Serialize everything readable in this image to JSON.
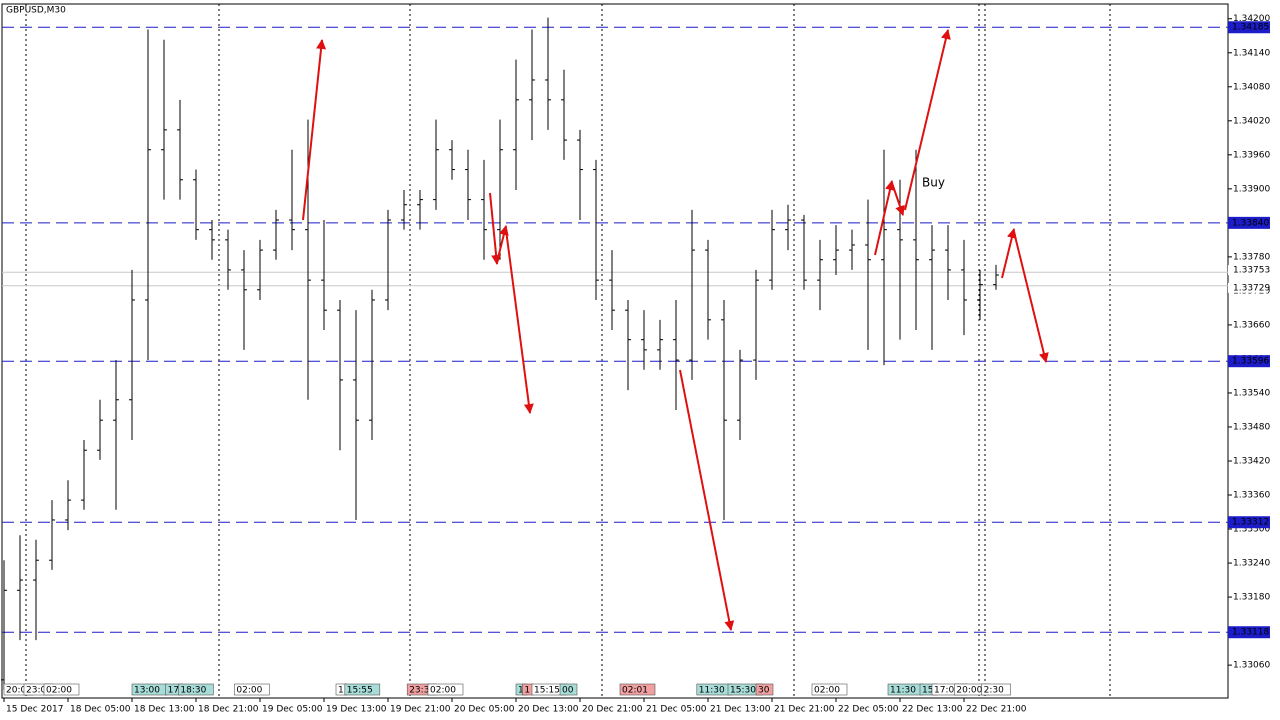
{
  "chart_data": {
    "type": "ohlc",
    "title": "GBPUSD,M30",
    "annotation": "Buy",
    "annotation_color": "#e02020",
    "xlim": [
      -0.125,
      76.5
    ],
    "ylim": [
      1.33002,
      1.34226
    ],
    "xticks": [
      {
        "value": 0,
        "label": "15 Dec 2017"
      },
      {
        "value": 4,
        "label": "18 Dec 05:00"
      },
      {
        "value": 8,
        "label": "18 Dec 13:00"
      },
      {
        "value": 12,
        "label": "18 Dec 21:00"
      },
      {
        "value": 16,
        "label": "19 Dec 05:00"
      },
      {
        "value": 20,
        "label": "19 Dec 13:00"
      },
      {
        "value": 24,
        "label": "19 Dec 21:00"
      },
      {
        "value": 28,
        "label": "20 Dec 05:00"
      },
      {
        "value": 32,
        "label": "20 Dec 13:00"
      },
      {
        "value": 36,
        "label": "20 Dec 21:00"
      },
      {
        "value": 40,
        "label": "21 Dec 05:00"
      },
      {
        "value": 44,
        "label": "21 Dec 13:00"
      },
      {
        "value": 48,
        "label": "21 Dec 21:00"
      },
      {
        "value": 52,
        "label": "22 Dec 05:00"
      },
      {
        "value": 56,
        "label": "22 Dec 13:00"
      },
      {
        "value": 60,
        "label": "22 Dec 21:00"
      }
    ],
    "yticks": [
      {
        "value": 1.3306,
        "label": "1.33060"
      },
      {
        "value": 1.3312,
        "label": "1.33120"
      },
      {
        "value": 1.3318,
        "label": "1.33180"
      },
      {
        "value": 1.3324,
        "label": "1.33240"
      },
      {
        "value": 1.333,
        "label": "1.33300"
      },
      {
        "value": 1.3336,
        "label": "1.33360"
      },
      {
        "value": 1.3342,
        "label": "1.33420"
      },
      {
        "value": 1.3348,
        "label": "1.33480"
      },
      {
        "value": 1.3354,
        "label": "1.33540"
      },
      {
        "value": 1.336,
        "label": "1.33600"
      },
      {
        "value": 1.3366,
        "label": "1.33660"
      },
      {
        "value": 1.3372,
        "label": "1.33720"
      },
      {
        "value": 1.3378,
        "label": "1.33780"
      },
      {
        "value": 1.3384,
        "label": "1.33840"
      },
      {
        "value": 1.339,
        "label": "1.33900"
      },
      {
        "value": 1.3396,
        "label": "1.33960"
      },
      {
        "value": 1.3402,
        "label": "1.34020"
      },
      {
        "value": 1.3408,
        "label": "1.34080"
      },
      {
        "value": 1.3414,
        "label": "1.34140"
      },
      {
        "value": 1.342,
        "label": "1.34200"
      }
    ],
    "levels": [
      1.34185,
      {
        "value": 1.3384,
        "label": "1.33840"
      },
      1.33596,
      1.33312,
      1.33118
    ],
    "level_color": "#1c1cc8",
    "price_lines": [
      1.33753,
      1.33729
    ],
    "price_line_color": "#c8c8c8",
    "separators": [
      1.375,
      13.4375,
      25.375,
      37.375,
      49.375,
      60.9375,
      61.3125,
      69.125
    ],
    "bar_color": "#000000",
    "x": [
      0,
      1,
      2,
      3,
      4,
      5,
      6,
      7,
      8,
      9,
      10,
      11,
      12,
      13,
      14,
      15,
      16,
      17,
      18,
      19,
      20,
      21,
      22,
      23,
      24,
      25,
      26,
      27,
      28,
      29,
      30,
      31,
      32,
      33,
      34,
      35,
      36,
      37,
      38,
      39,
      40,
      41,
      42,
      43,
      44,
      45,
      46,
      47,
      48,
      49,
      50,
      51,
      52,
      53,
      54,
      55,
      56,
      57,
      58,
      59,
      60,
      61,
      62
    ],
    "open": [
      1.33034,
      1.33192,
      1.3321,
      1.33245,
      1.33316,
      1.33351,
      1.33439,
      1.33492,
      1.33528,
      1.33704,
      1.33969,
      1.34004,
      1.33916,
      1.33828,
      1.3381,
      1.33757,
      1.33722,
      1.33792,
      1.33845,
      1.33828,
      1.33739,
      1.33686,
      1.33563,
      1.33492,
      1.33704,
      1.33845,
      1.33872,
      1.33881,
      1.33969,
      1.33934,
      1.33881,
      1.33828,
      1.33969,
      1.34057,
      1.34092,
      1.34057,
      1.33986,
      1.33934,
      1.33739,
      1.33686,
      1.33634,
      1.33616,
      1.33634,
      1.33598,
      1.33792,
      1.33669,
      1.33492,
      1.33598,
      1.33739,
      1.33828,
      1.33845,
      1.33739,
      1.33775,
      1.33792,
      1.33801,
      1.33775,
      1.33828,
      1.3381,
      1.33775,
      1.33792,
      1.33757,
      1.33704,
      1.33731
    ],
    "high": [
      1.33245,
      1.33289,
      1.33281,
      1.33351,
      1.33386,
      1.33457,
      1.33528,
      1.33598,
      1.33757,
      1.34181,
      1.34163,
      1.34057,
      1.33934,
      1.33845,
      1.33828,
      1.33792,
      1.3381,
      1.33863,
      1.33969,
      1.34022,
      1.33845,
      1.33704,
      1.33686,
      1.33722,
      1.33863,
      1.33898,
      1.33898,
      1.34022,
      1.33986,
      1.33969,
      1.33951,
      1.34022,
      1.34128,
      1.34181,
      1.34202,
      1.3411,
      1.34004,
      1.33951,
      1.33792,
      1.33704,
      1.33686,
      1.33669,
      1.33704,
      1.33863,
      1.3381,
      1.33704,
      1.33616,
      1.33757,
      1.33863,
      1.33872,
      1.33854,
      1.3381,
      1.33836,
      1.33828,
      1.33881,
      1.33969,
      1.33916,
      1.33969,
      1.33836,
      1.33836,
      1.3381,
      1.33757,
      1.33766
    ],
    "low": [
      1.33016,
      1.33104,
      1.33104,
      1.33228,
      1.33298,
      1.33334,
      1.33422,
      1.33334,
      1.33457,
      1.33598,
      1.33881,
      1.33881,
      1.3381,
      1.33775,
      1.33722,
      1.33616,
      1.33704,
      1.33775,
      1.33792,
      1.33528,
      1.33651,
      1.33439,
      1.33316,
      1.33457,
      1.33686,
      1.33828,
      1.33828,
      1.33863,
      1.33916,
      1.33845,
      1.33775,
      1.33775,
      1.33898,
      1.33986,
      1.34004,
      1.33951,
      1.33845,
      1.33704,
      1.33651,
      1.33545,
      1.33581,
      1.33581,
      1.3351,
      1.33563,
      1.33634,
      1.33316,
      1.33457,
      1.33563,
      1.33722,
      1.33792,
      1.33722,
      1.33686,
      1.33748,
      1.33757,
      1.33616,
      1.33589,
      1.33634,
      1.33651,
      1.33616,
      1.33704,
      1.33642,
      1.33669,
      1.33722
    ],
    "close": [
      1.33192,
      1.3321,
      1.33245,
      1.33316,
      1.33351,
      1.33439,
      1.33492,
      1.33528,
      1.33704,
      1.33969,
      1.34004,
      1.33916,
      1.33828,
      1.3381,
      1.33757,
      1.33722,
      1.33792,
      1.33845,
      1.33828,
      1.33739,
      1.33686,
      1.33563,
      1.33492,
      1.33704,
      1.33845,
      1.33872,
      1.33881,
      1.33969,
      1.33934,
      1.33881,
      1.33828,
      1.33969,
      1.34057,
      1.34092,
      1.34057,
      1.33986,
      1.33934,
      1.33739,
      1.33686,
      1.33634,
      1.33616,
      1.33634,
      1.33598,
      1.33792,
      1.33669,
      1.33492,
      1.33598,
      1.33739,
      1.33828,
      1.33845,
      1.33739,
      1.33775,
      1.33792,
      1.33801,
      1.33775,
      1.33828,
      1.3381,
      1.33775,
      1.33792,
      1.33757,
      1.33704,
      1.33731,
      1.33748
    ],
    "events": [
      {
        "x": 0,
        "label": "20:0",
        "color": "#ffffff"
      },
      {
        "x": 1.25,
        "label": "23:0",
        "color": "#ffffff"
      },
      {
        "x": 2.5,
        "label": "02:00",
        "color": "#ffffff"
      },
      {
        "x": 8,
        "label": "13:00",
        "color": "#a8dcd8"
      },
      {
        "x": 10.1,
        "label": "17",
        "color": "#a8dcd8"
      },
      {
        "x": 10.9,
        "label": "18:30",
        "color": "#a8dcd8"
      },
      {
        "x": 14.4,
        "label": "02:00",
        "color": "#ffffff"
      },
      {
        "x": 20.75,
        "label": "1",
        "color": "#ffffff"
      },
      {
        "x": 21.3,
        "label": "15:55",
        "color": "#a8dcd8"
      },
      {
        "x": 25.2,
        "label": "23:3",
        "color": "#f0a0a0"
      },
      {
        "x": 26.5,
        "label": "02:00",
        "color": "#ffffff"
      },
      {
        "x": 32,
        "label": "1",
        "color": "#a8dcd8"
      },
      {
        "x": 32.4,
        "label": "1",
        "color": "#f0a0a0"
      },
      {
        "x": 33,
        "label": "15:15",
        "color": "#ffffff"
      },
      {
        "x": 34.75,
        "label": "00",
        "color": "#a8dcd8"
      },
      {
        "x": 38.5,
        "label": "02:01",
        "color": "#f0a0a0"
      },
      {
        "x": 43.3,
        "label": "11:30",
        "color": "#a8dcd8"
      },
      {
        "x": 45.25,
        "label": "15:30",
        "color": "#a8dcd8"
      },
      {
        "x": 47,
        "label": "30",
        "color": "#f0a0a0"
      },
      {
        "x": 50.5,
        "label": "02:00",
        "color": "#ffffff"
      },
      {
        "x": 55.25,
        "label": "11:30",
        "color": "#a8dcd8"
      },
      {
        "x": 57.25,
        "label": "15",
        "color": "#a8dcd8"
      },
      {
        "x": 58,
        "label": "17:00",
        "color": "#ffffff"
      },
      {
        "x": 59.4,
        "label": "20:00",
        "color": "#ffffff"
      },
      {
        "x": 61.1,
        "label": "2:30",
        "color": "#ffffff"
      }
    ]
  }
}
